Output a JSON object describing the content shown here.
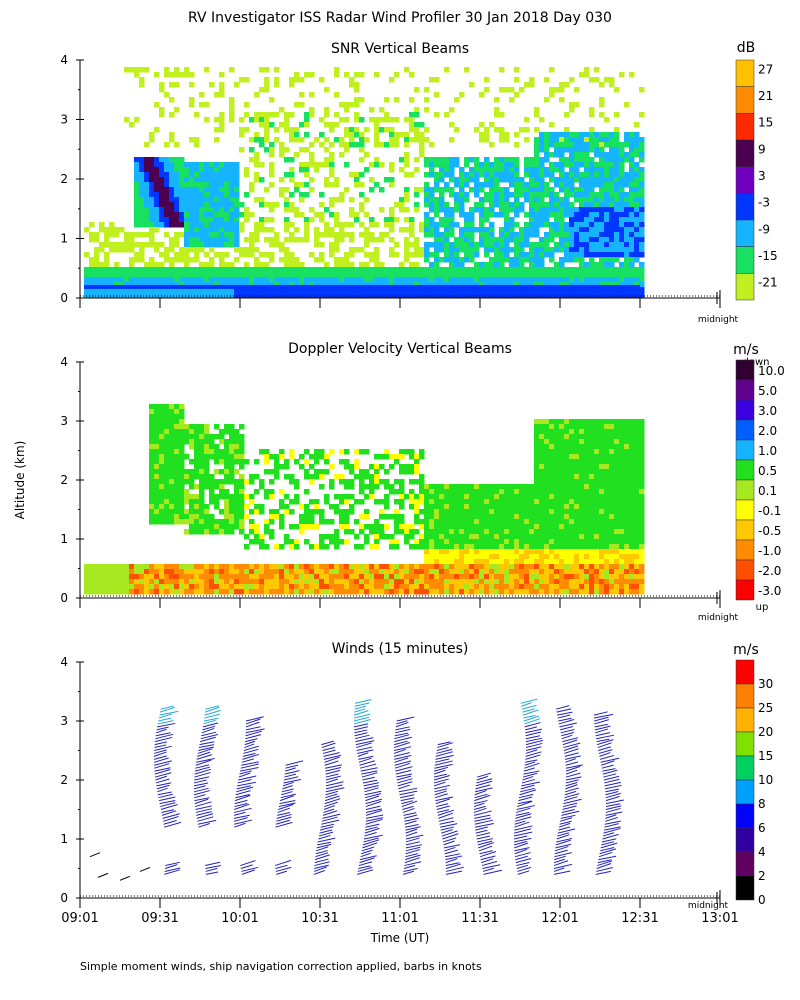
{
  "title": "RV Investigator ISS Radar Wind Profiler  30 Jan 2018 Day 030",
  "footnote": "Simple moment winds, ship navigation correction applied, barbs in knots",
  "ylabel": "Altitude (km)",
  "xlabel": "Time (UT)",
  "midnight_label": "midnight",
  "chart_data": [
    {
      "type": "heatmap",
      "title": "SNR Vertical Beams",
      "units": "dB",
      "ylim": [
        0,
        4
      ],
      "yticks": [
        "0",
        "1",
        "2",
        "3",
        "4"
      ],
      "xlim_hours": [
        9.0167,
        13.0167
      ],
      "colorbar": {
        "labels": [
          "27",
          "21",
          "15",
          "9",
          "3",
          "-3",
          "-9",
          "-15",
          "-21"
        ],
        "colors": [
          "#ffc000",
          "#ff8c00",
          "#ff2a00",
          "#4b0050",
          "#7000c0",
          "#0036ff",
          "#16b4ff",
          "#18e060",
          "#c0f020"
        ]
      }
    },
    {
      "type": "heatmap",
      "title": "Doppler Velocity Vertical Beams",
      "units": "m/s",
      "ylim": [
        0,
        4
      ],
      "yticks": [
        "0",
        "1",
        "2",
        "3",
        "4"
      ],
      "xlim_hours": [
        9.0167,
        13.0167
      ],
      "colorbar": {
        "top_label": "down",
        "bottom_label": "up",
        "labels": [
          "10.0",
          "5.0",
          "3.0",
          "2.0",
          "1.0",
          "0.5",
          "0.1",
          "-0.1",
          "-0.5",
          "-1.0",
          "-2.0",
          "-3.0"
        ],
        "colors": [
          "#300030",
          "#60008c",
          "#3c00e0",
          "#0060ff",
          "#16b4ff",
          "#20e020",
          "#a8e820",
          "#ffff00",
          "#ffc800",
          "#ff8c00",
          "#ff5000",
          "#ff0000"
        ]
      }
    },
    {
      "type": "scatter",
      "title": "Winds (15 minutes)",
      "units": "m/s",
      "ylim": [
        0,
        4
      ],
      "yticks": [
        "0",
        "1",
        "2",
        "3",
        "4"
      ],
      "xticks": [
        "09:01",
        "09:31",
        "10:01",
        "10:31",
        "11:01",
        "11:31",
        "12:01",
        "12:31",
        "13:01"
      ],
      "profile_times": [
        "09:31",
        "09:46",
        "10:01",
        "10:16",
        "10:31",
        "10:46",
        "11:01",
        "11:16",
        "11:31",
        "11:46",
        "12:01",
        "12:16"
      ],
      "colorbar": {
        "labels": [
          "30",
          "25",
          "20",
          "15",
          "10",
          "8",
          "6",
          "4",
          "2",
          "0"
        ],
        "colors": [
          "#ff0000",
          "#ff8000",
          "#ffb000",
          "#80e000",
          "#00d060",
          "#00a0ff",
          "#0000ff",
          "#3000a0",
          "#600060",
          "#000000"
        ]
      }
    }
  ]
}
